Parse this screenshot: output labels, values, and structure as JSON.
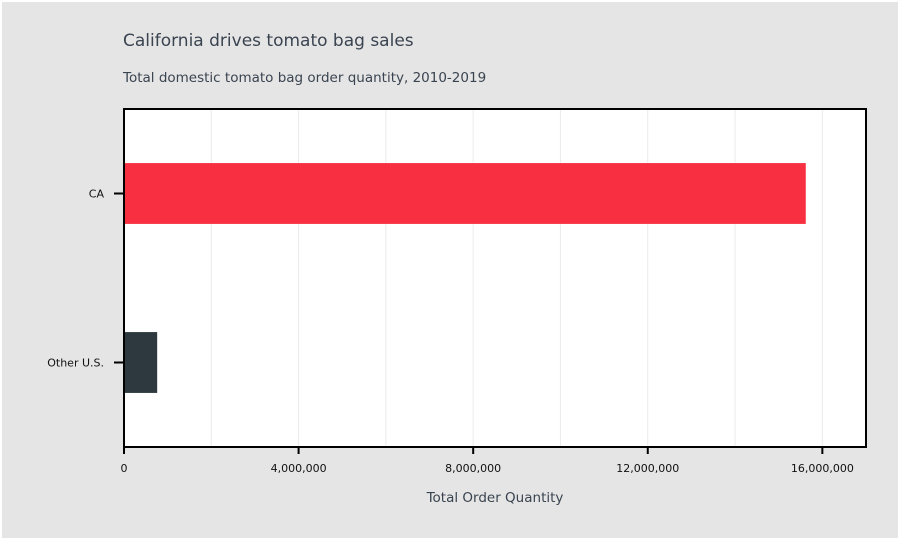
{
  "chart_data": {
    "type": "bar",
    "orientation": "horizontal",
    "title": "California drives tomato bag sales",
    "subtitle": "Total domestic tomato bag order quantity, 2010-2019",
    "xlabel": "Total Order Quantity",
    "ylabel": "",
    "categories": [
      "CA",
      "Other U.S."
    ],
    "values": [
      15620000,
      760000
    ],
    "colors": [
      "#f72f40",
      "#2d383f"
    ],
    "xlim": [
      0,
      17000000
    ],
    "xticks": [
      0,
      4000000,
      8000000,
      12000000,
      16000000
    ],
    "xtick_labels": [
      "0",
      "4,000,000",
      "8,000,000",
      "12,000,000",
      "16,000,000"
    ],
    "grid": true,
    "background": "#e5e5e5"
  }
}
